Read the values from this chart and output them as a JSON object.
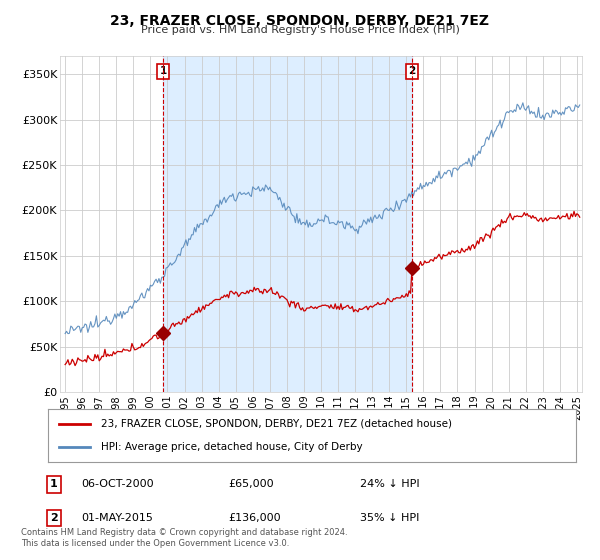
{
  "title": "23, FRAZER CLOSE, SPONDON, DERBY, DE21 7EZ",
  "subtitle": "Price paid vs. HM Land Registry's House Price Index (HPI)",
  "legend_line1": "23, FRAZER CLOSE, SPONDON, DERBY, DE21 7EZ (detached house)",
  "legend_line2": "HPI: Average price, detached house, City of Derby",
  "transaction1_label": "1",
  "transaction1_date": "06-OCT-2000",
  "transaction1_price": "£65,000",
  "transaction1_hpi": "24% ↓ HPI",
  "transaction1_year": 2000.75,
  "transaction1_value": 65000,
  "transaction2_label": "2",
  "transaction2_date": "01-MAY-2015",
  "transaction2_price": "£136,000",
  "transaction2_hpi": "35% ↓ HPI",
  "transaction2_year": 2015.33,
  "transaction2_value": 136000,
  "footer_line1": "Contains HM Land Registry data © Crown copyright and database right 2024.",
  "footer_line2": "This data is licensed under the Open Government Licence v3.0.",
  "red_color": "#cc0000",
  "blue_color": "#5588bb",
  "shade_color": "#ddeeff",
  "marker_color": "#990000",
  "ylim_min": 0,
  "ylim_max": 370000,
  "xlim_min": 1994.7,
  "xlim_max": 2025.3,
  "background_color": "#ffffff",
  "plot_bg_color": "#ffffff"
}
